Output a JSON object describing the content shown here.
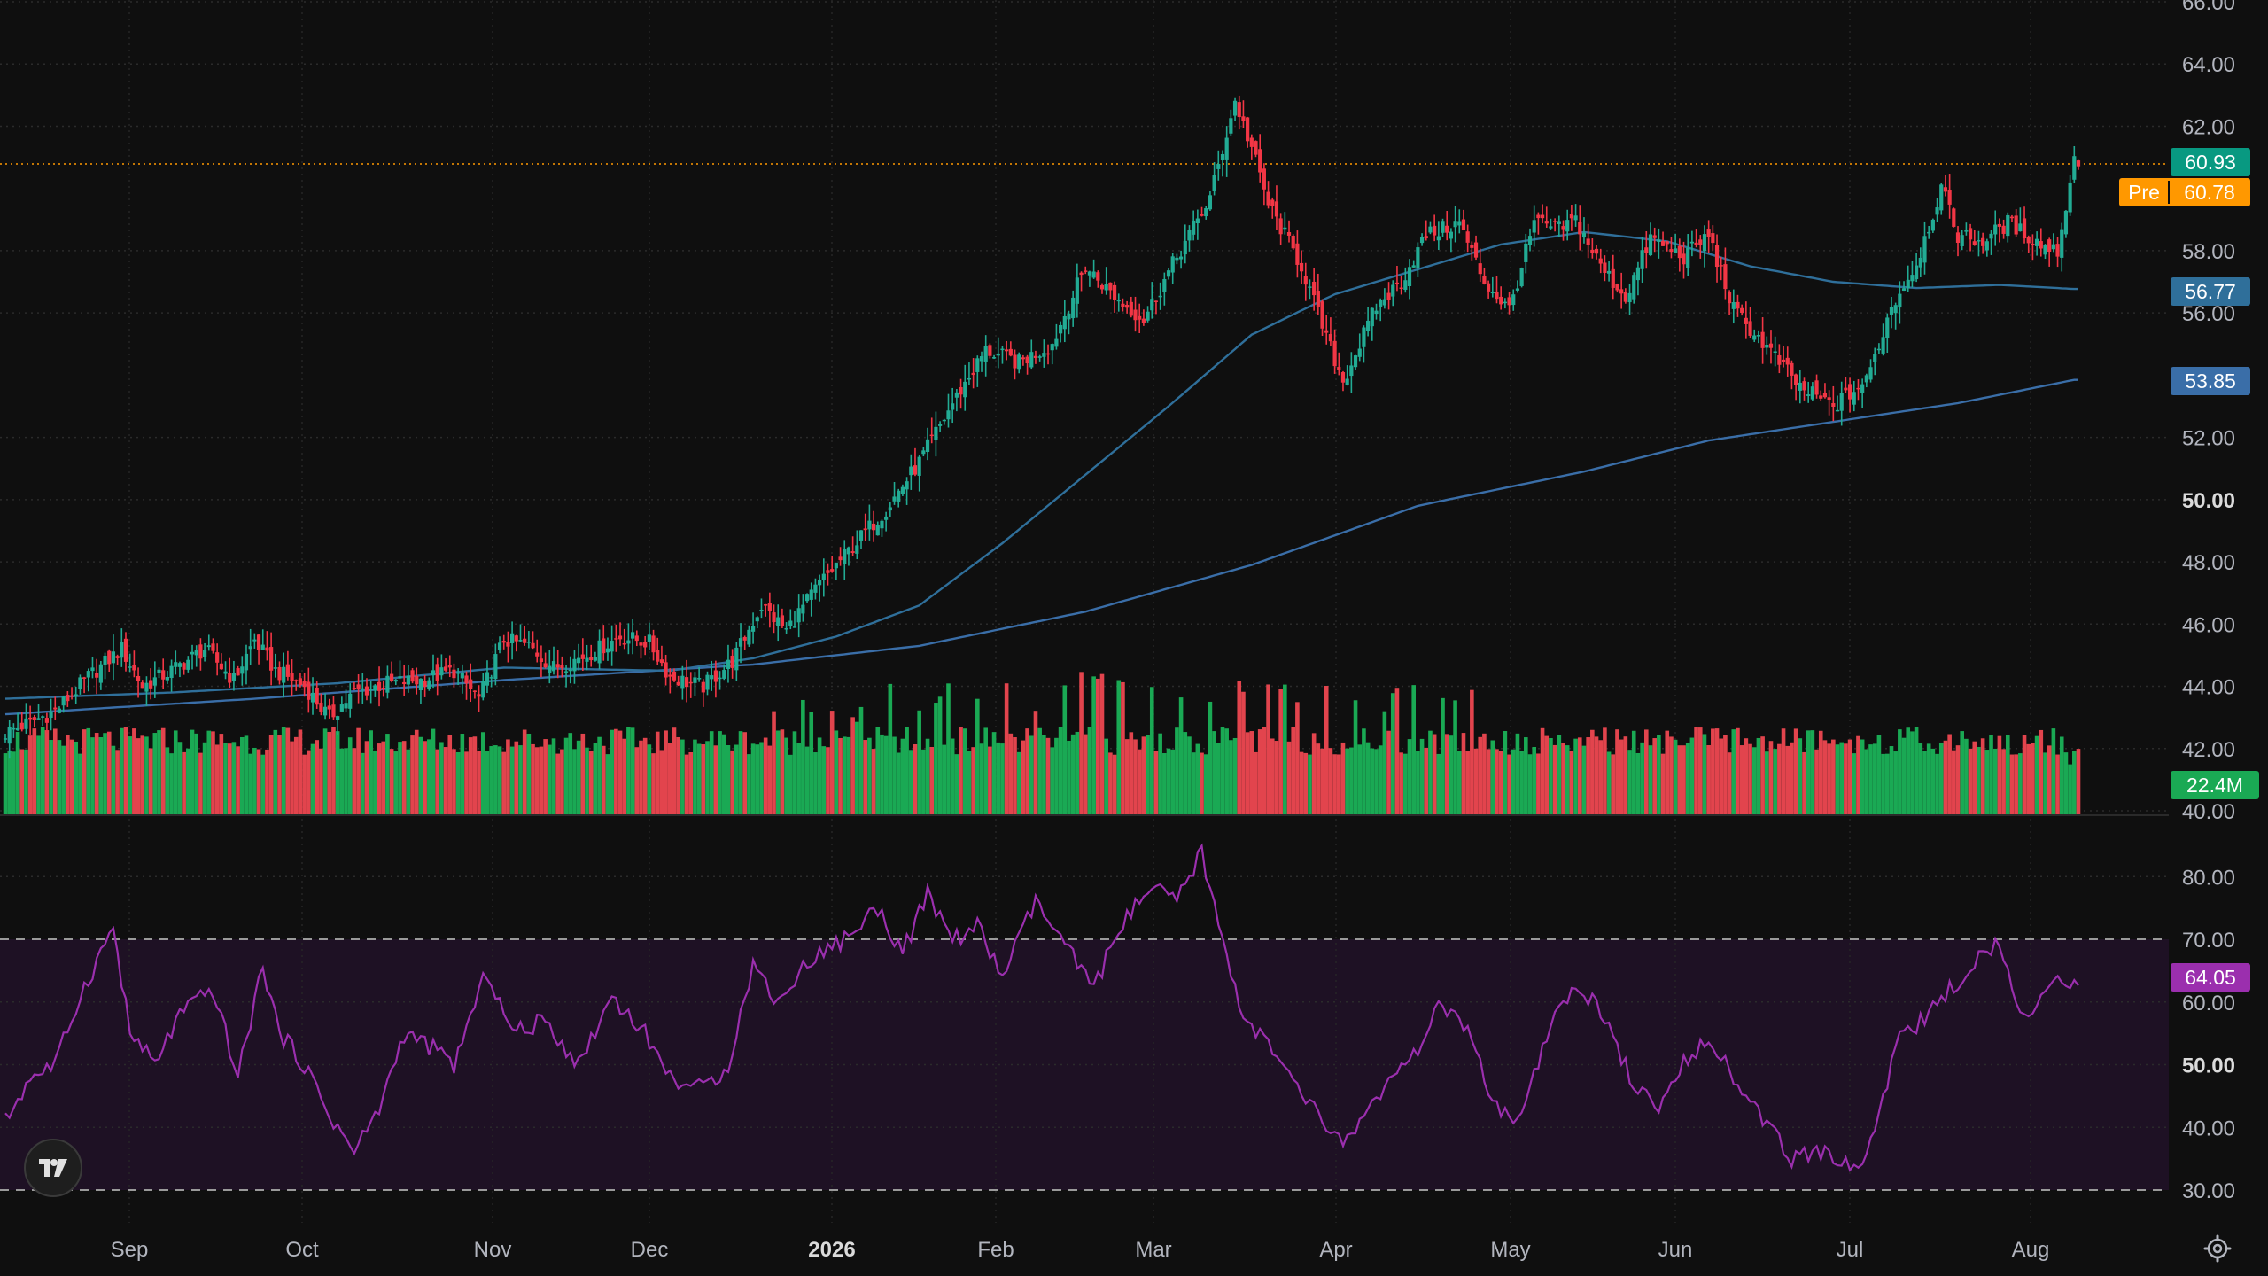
{
  "chart_data": {
    "type": "candlestick",
    "price_axis": {
      "ticks": [
        "66.00",
        "64.00",
        "62.00",
        "58.00",
        "56.00",
        "52.00",
        "50.00",
        "48.00",
        "46.00",
        "44.00",
        "42.00",
        "40.00"
      ],
      "bold_ticks": [
        "50.00"
      ],
      "ylim": [
        40,
        66
      ]
    },
    "rsi_axis": {
      "ticks": [
        "80.00",
        "70.00",
        "60.00",
        "50.00",
        "40.00",
        "30.00"
      ],
      "bold_ticks": [
        "50.00"
      ],
      "ylim": [
        27,
        88
      ],
      "upper_band": 70,
      "lower_band": 30
    },
    "time_axis": {
      "labels": [
        "Sep",
        "Oct",
        "Nov",
        "Dec",
        "2026",
        "Feb",
        "Mar",
        "Apr",
        "May",
        "Jun",
        "Jul",
        "Aug"
      ],
      "bold_labels": [
        "2026"
      ]
    },
    "badges": {
      "last_price": "60.93",
      "pre_label": "Pre",
      "pre_price": "60.78",
      "ma_fast": "56.77",
      "ma_slow": "53.85",
      "volume": "22.4M",
      "rsi": "64.05"
    },
    "colors": {
      "up": "#22ab94",
      "down": "#f23645",
      "vol_up": "#1aa954",
      "vol_down": "#e2444d",
      "ma_fast": "#2f6f9a",
      "ma_slow": "#3a6ea8",
      "rsi": "#9b2fae",
      "pre": "#ff9800",
      "last": "#089981",
      "rsi_band_fill": "#1e1124"
    },
    "price_anchors": [
      [
        0,
        42.5
      ],
      [
        12,
        43.2
      ],
      [
        20,
        44.3
      ],
      [
        28,
        45.2
      ],
      [
        33,
        44.0
      ],
      [
        40,
        44.5
      ],
      [
        48,
        45.2
      ],
      [
        55,
        44.2
      ],
      [
        60,
        45.5
      ],
      [
        65,
        44.5
      ],
      [
        72,
        44.0
      ],
      [
        78,
        43.0
      ],
      [
        84,
        43.8
      ],
      [
        92,
        44.1
      ],
      [
        100,
        44.2
      ],
      [
        108,
        44.5
      ],
      [
        114,
        43.6
      ],
      [
        120,
        45.5
      ],
      [
        126,
        45.3
      ],
      [
        132,
        44.6
      ],
      [
        140,
        45.0
      ],
      [
        148,
        45.6
      ],
      [
        155,
        45.4
      ],
      [
        160,
        44.3
      ],
      [
        168,
        44.0
      ],
      [
        175,
        44.8
      ],
      [
        182,
        46.6
      ],
      [
        188,
        45.8
      ],
      [
        196,
        47.3
      ],
      [
        204,
        48.5
      ],
      [
        212,
        49.7
      ],
      [
        220,
        51.2
      ],
      [
        228,
        53.1
      ],
      [
        236,
        54.8
      ],
      [
        244,
        54.4
      ],
      [
        252,
        55.0
      ],
      [
        260,
        57.5
      ],
      [
        268,
        56.4
      ],
      [
        274,
        55.8
      ],
      [
        282,
        57.8
      ],
      [
        290,
        59.7
      ],
      [
        296,
        62.8
      ],
      [
        300,
        61.3
      ],
      [
        304,
        59.5
      ],
      [
        312,
        57.5
      ],
      [
        318,
        55.2
      ],
      [
        322,
        53.8
      ],
      [
        330,
        56.2
      ],
      [
        336,
        57.0
      ],
      [
        342,
        58.5
      ],
      [
        350,
        58.9
      ],
      [
        356,
        57.0
      ],
      [
        362,
        56.1
      ],
      [
        368,
        58.9
      ],
      [
        374,
        58.7
      ],
      [
        378,
        59.0
      ],
      [
        384,
        57.5
      ],
      [
        390,
        56.5
      ],
      [
        396,
        58.4
      ],
      [
        404,
        57.8
      ],
      [
        410,
        58.5
      ],
      [
        416,
        56.1
      ],
      [
        424,
        54.9
      ],
      [
        432,
        53.6
      ],
      [
        440,
        53.0
      ],
      [
        448,
        53.8
      ],
      [
        454,
        56.2
      ],
      [
        460,
        57.6
      ],
      [
        466,
        60.0
      ],
      [
        470,
        58.5
      ],
      [
        476,
        58.3
      ],
      [
        482,
        58.9
      ],
      [
        490,
        58.2
      ],
      [
        494,
        58.0
      ],
      [
        498,
        60.93
      ]
    ],
    "rsi_anchors": [
      [
        0,
        41
      ],
      [
        6,
        48
      ],
      [
        12,
        50
      ],
      [
        18,
        61
      ],
      [
        26,
        72
      ],
      [
        30,
        55
      ],
      [
        36,
        50
      ],
      [
        42,
        58
      ],
      [
        50,
        62
      ],
      [
        56,
        48
      ],
      [
        62,
        66
      ],
      [
        66,
        55
      ],
      [
        72,
        50
      ],
      [
        78,
        42
      ],
      [
        84,
        36
      ],
      [
        90,
        43
      ],
      [
        96,
        55
      ],
      [
        102,
        53
      ],
      [
        108,
        50
      ],
      [
        116,
        65
      ],
      [
        122,
        55
      ],
      [
        130,
        57
      ],
      [
        138,
        50
      ],
      [
        146,
        61
      ],
      [
        154,
        55
      ],
      [
        160,
        48
      ],
      [
        168,
        46
      ],
      [
        174,
        50
      ],
      [
        180,
        66
      ],
      [
        186,
        60
      ],
      [
        194,
        67
      ],
      [
        202,
        70
      ],
      [
        210,
        75
      ],
      [
        216,
        68
      ],
      [
        222,
        77
      ],
      [
        228,
        70
      ],
      [
        234,
        72
      ],
      [
        240,
        64
      ],
      [
        248,
        76
      ],
      [
        256,
        68
      ],
      [
        262,
        62
      ],
      [
        268,
        72
      ],
      [
        276,
        78
      ],
      [
        282,
        76
      ],
      [
        288,
        84
      ],
      [
        292,
        72
      ],
      [
        298,
        58
      ],
      [
        304,
        53
      ],
      [
        310,
        47
      ],
      [
        316,
        42
      ],
      [
        322,
        37
      ],
      [
        330,
        45
      ],
      [
        338,
        50
      ],
      [
        346,
        60
      ],
      [
        352,
        55
      ],
      [
        358,
        44
      ],
      [
        364,
        40
      ],
      [
        372,
        56
      ],
      [
        378,
        63
      ],
      [
        386,
        57
      ],
      [
        392,
        46
      ],
      [
        398,
        43
      ],
      [
        404,
        50
      ],
      [
        410,
        55
      ],
      [
        416,
        48
      ],
      [
        422,
        42
      ],
      [
        430,
        35
      ],
      [
        438,
        36
      ],
      [
        446,
        33
      ],
      [
        450,
        40
      ],
      [
        456,
        55
      ],
      [
        462,
        57
      ],
      [
        468,
        62
      ],
      [
        474,
        66
      ],
      [
        480,
        70
      ],
      [
        486,
        57
      ],
      [
        492,
        62
      ],
      [
        498,
        64.05
      ]
    ],
    "ma_fast_anchors": [
      [
        0,
        43.6
      ],
      [
        40,
        43.8
      ],
      [
        80,
        44.1
      ],
      [
        120,
        44.6
      ],
      [
        160,
        44.5
      ],
      [
        180,
        44.9
      ],
      [
        200,
        45.6
      ],
      [
        220,
        46.6
      ],
      [
        240,
        48.6
      ],
      [
        260,
        50.8
      ],
      [
        280,
        53.0
      ],
      [
        300,
        55.3
      ],
      [
        320,
        56.6
      ],
      [
        340,
        57.4
      ],
      [
        360,
        58.2
      ],
      [
        380,
        58.6
      ],
      [
        400,
        58.3
      ],
      [
        420,
        57.5
      ],
      [
        440,
        57.0
      ],
      [
        460,
        56.8
      ],
      [
        480,
        56.9
      ],
      [
        498,
        56.77
      ]
    ],
    "ma_slow_anchors": [
      [
        0,
        43.1
      ],
      [
        60,
        43.6
      ],
      [
        120,
        44.2
      ],
      [
        180,
        44.7
      ],
      [
        220,
        45.3
      ],
      [
        260,
        46.4
      ],
      [
        300,
        47.9
      ],
      [
        340,
        49.8
      ],
      [
        380,
        50.9
      ],
      [
        410,
        51.9
      ],
      [
        440,
        52.5
      ],
      [
        470,
        53.1
      ],
      [
        498,
        53.85
      ]
    ],
    "volume_levels": {
      "base": 5.8,
      "spike_dates": [
        [
          193,
          8.9
        ],
        [
          204,
          8.0
        ],
        [
          224,
          9.5
        ],
        [
          260,
          12.8
        ],
        [
          263,
          11.0
        ],
        [
          268,
          11.0
        ],
        [
          298,
          10.8
        ],
        [
          308,
          10.5
        ],
        [
          334,
          10.0
        ],
        [
          348,
          9.2
        ],
        [
          372,
          6.6
        ],
        [
          384,
          6.9
        ],
        [
          398,
          6.6
        ],
        [
          420,
          6.2
        ],
        [
          440,
          6.0
        ],
        [
          462,
          5.7
        ],
        [
          484,
          5.5
        ],
        [
          498,
          4.6
        ]
      ]
    }
  },
  "ui": {
    "logo_label": "TV",
    "settings_icon": "gear-icon"
  }
}
